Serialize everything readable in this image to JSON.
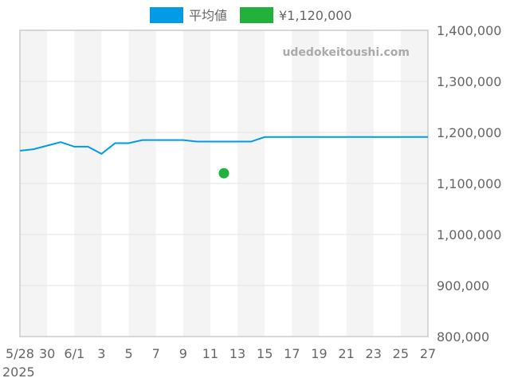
{
  "chart_data": {
    "type": "line",
    "title": "",
    "xlabel": "",
    "ylabel": "",
    "watermark": "udedokeitoushi.com",
    "x_year_label": "2025",
    "x": [
      "5/28",
      "5/29",
      "5/30",
      "5/31",
      "6/1",
      "6/2",
      "6/3",
      "6/4",
      "6/5",
      "6/6",
      "6/7",
      "6/8",
      "6/9",
      "6/10",
      "6/11",
      "6/12",
      "6/13",
      "6/14",
      "6/15",
      "6/16",
      "6/17",
      "6/18",
      "6/19",
      "6/20",
      "6/21",
      "6/22",
      "6/23",
      "6/24",
      "6/25",
      "6/26",
      "6/27"
    ],
    "x_tick_labels": [
      "5/28",
      "30",
      "6/1",
      "3",
      "5",
      "7",
      "9",
      "11",
      "13",
      "15",
      "17",
      "19",
      "21",
      "23",
      "25",
      "27"
    ],
    "ylim": [
      800000,
      1400000
    ],
    "y_tick_labels": [
      "1,400,000",
      "1,300,000",
      "1,200,000",
      "1,100,000",
      "1,000,000",
      "900,000",
      "800,000"
    ],
    "y_ticks": [
      1400000,
      1300000,
      1200000,
      1100000,
      1000000,
      900000,
      800000
    ],
    "grid": true,
    "legend_position": "top",
    "series": [
      {
        "name": "平均値",
        "kind": "line",
        "color": "#039be5",
        "values": [
          1164000,
          1167000,
          1174000,
          1181000,
          1172000,
          1172000,
          1158000,
          1179000,
          1179000,
          1185000,
          1185000,
          1185000,
          1185000,
          1182000,
          1182000,
          1182000,
          1182000,
          1182000,
          1191000,
          1191000,
          1191000,
          1191000,
          1191000,
          1191000,
          1191000,
          1191000,
          1191000,
          1191000,
          1191000,
          1191000,
          1191000
        ]
      },
      {
        "name": "¥1,120,000",
        "kind": "point",
        "color": "#22b13a",
        "points": [
          {
            "x": "6/12",
            "y": 1120000
          }
        ]
      }
    ]
  }
}
